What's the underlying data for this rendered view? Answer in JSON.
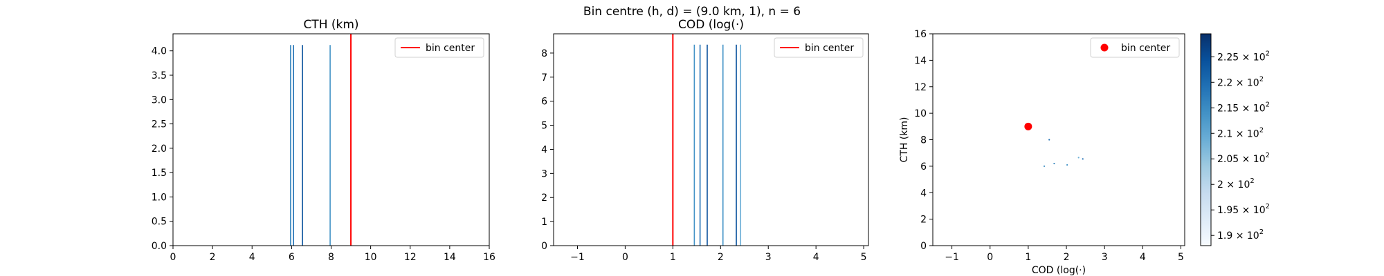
{
  "figure": {
    "suptitle": "Bin centre (h, d) = (9.0 km, 1), n = 6"
  },
  "chart_data": [
    {
      "type": "bar",
      "title": "CTH (km)",
      "xlabel": "",
      "ylabel": "",
      "xlim": [
        0,
        16
      ],
      "ylim": [
        0,
        4.35
      ],
      "xticks": [
        "0",
        "2",
        "4",
        "6",
        "8",
        "10",
        "12",
        "14",
        "16"
      ],
      "yticks": [
        "0.0",
        "0.5",
        "1.0",
        "1.5",
        "2.0",
        "2.5",
        "3.0",
        "3.5",
        "4.0"
      ],
      "bars": [
        {
          "x": 5.95,
          "value": 4.12,
          "color": "#3182bd"
        },
        {
          "x": 6.1,
          "value": 4.12,
          "color": "#2171b5"
        },
        {
          "x": 6.55,
          "value": 4.12,
          "color": "#08519c"
        },
        {
          "x": 7.95,
          "value": 4.12,
          "color": "#4292c6"
        }
      ],
      "center_line": {
        "x": 9.0,
        "color": "#ff0000"
      },
      "legend": {
        "label": "bin center",
        "position": "top-right"
      }
    },
    {
      "type": "bar",
      "title": "COD (log(·)",
      "xlabel": "",
      "ylabel": "",
      "xlim": [
        -1.5,
        5.1
      ],
      "ylim": [
        0,
        8.8
      ],
      "xticks": [
        "−1",
        "0",
        "1",
        "2",
        "3",
        "4",
        "5"
      ],
      "yticks": [
        "0",
        "1",
        "2",
        "3",
        "4",
        "5",
        "6",
        "7",
        "8"
      ],
      "bars": [
        {
          "x": 1.45,
          "value": 8.35,
          "color": "#4292c6"
        },
        {
          "x": 1.57,
          "value": 8.35,
          "color": "#2171b5"
        },
        {
          "x": 1.72,
          "value": 8.35,
          "color": "#08519c"
        },
        {
          "x": 2.05,
          "value": 8.35,
          "color": "#4292c6"
        },
        {
          "x": 2.33,
          "value": 8.35,
          "color": "#08519c"
        },
        {
          "x": 2.42,
          "value": 8.35,
          "color": "#6baed6"
        }
      ],
      "center_line": {
        "x": 1.0,
        "color": "#ff0000"
      },
      "legend": {
        "label": "bin center",
        "position": "top-right"
      }
    },
    {
      "type": "scatter",
      "title": "",
      "xlabel": "COD (log(·)",
      "ylabel": "CTH (km)",
      "xlim": [
        -1.5,
        5.1
      ],
      "ylim": [
        0,
        16
      ],
      "xticks": [
        "−1",
        "0",
        "1",
        "2",
        "3",
        "4",
        "5"
      ],
      "yticks": [
        "0",
        "2",
        "4",
        "6",
        "8",
        "10",
        "12",
        "14",
        "16"
      ],
      "points": [
        {
          "x": 1.55,
          "y": 8.0,
          "color": "#2171b5"
        },
        {
          "x": 1.42,
          "y": 6.0,
          "color": "#4292c6"
        },
        {
          "x": 1.68,
          "y": 6.2,
          "color": "#3182bd"
        },
        {
          "x": 2.02,
          "y": 6.1,
          "color": "#4292c6"
        },
        {
          "x": 2.32,
          "y": 6.65,
          "color": "#6baed6"
        },
        {
          "x": 2.43,
          "y": 6.55,
          "color": "#2171b5"
        }
      ],
      "center_point": {
        "x": 1.0,
        "y": 9.0,
        "color": "#ff0000"
      },
      "legend": {
        "label": "bin center",
        "position": "top-right"
      },
      "colorbar": {
        "cmap": [
          "#f7fbff",
          "#deebf7",
          "#c6dbef",
          "#9ecae1",
          "#6baed6",
          "#4292c6",
          "#2171b5",
          "#08519c",
          "#08306b"
        ],
        "range": [
          188,
          229.5
        ],
        "ticks": [
          {
            "value": 190,
            "base": "1.9",
            "exp": "2"
          },
          {
            "value": 195,
            "base": "1.95",
            "exp": "2"
          },
          {
            "value": 200,
            "base": "2",
            "exp": "2"
          },
          {
            "value": 205,
            "base": "2.05",
            "exp": "2"
          },
          {
            "value": 210,
            "base": "2.1",
            "exp": "2"
          },
          {
            "value": 215,
            "base": "2.15",
            "exp": "2"
          },
          {
            "value": 220,
            "base": "2.2",
            "exp": "2"
          },
          {
            "value": 225,
            "base": "2.25",
            "exp": "2"
          }
        ]
      }
    }
  ]
}
